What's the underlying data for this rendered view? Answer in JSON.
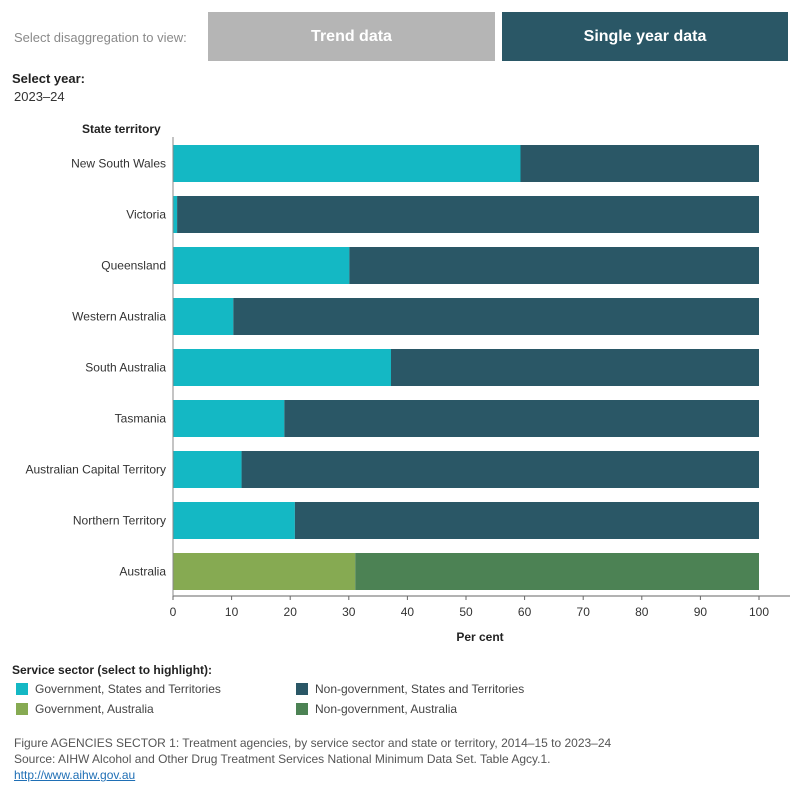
{
  "controls": {
    "disaggregation_label": "Select disaggregation to view:",
    "tabs": [
      {
        "label": "Trend data",
        "active": false
      },
      {
        "label": "Single year data",
        "active": true
      }
    ],
    "year_label": "Select year:",
    "year_value": "2023–24"
  },
  "colors": {
    "gov_states": "#14b8c4",
    "nongov_states": "#2a5766",
    "gov_australia": "#86aa52",
    "nongov_australia": "#4c8254",
    "tab_inactive": "#b5b5b5",
    "tab_active": "#2a5766"
  },
  "chart_data": {
    "type": "bar",
    "orientation": "horizontal",
    "stacked": true,
    "y_axis_title": "State territory",
    "xlabel": "Per cent",
    "xlim": [
      0,
      100
    ],
    "x_ticks": [
      0,
      10,
      20,
      30,
      40,
      50,
      60,
      70,
      80,
      90,
      100
    ],
    "categories": [
      "New South Wales",
      "Victoria",
      "Queensland",
      "Western Australia",
      "South Australia",
      "Tasmania",
      "Australian Capital Territory",
      "Northern Territory",
      "Australia"
    ],
    "series": [
      {
        "name": "Government, States and Territories",
        "values": [
          59.3,
          0.7,
          30.1,
          10.3,
          37.2,
          19.0,
          11.7,
          20.8,
          null
        ]
      },
      {
        "name": "Non-government, States and Territories",
        "values": [
          40.7,
          99.3,
          69.9,
          89.7,
          62.8,
          81.0,
          88.3,
          79.2,
          null
        ]
      },
      {
        "name": "Government, Australia",
        "values": [
          null,
          null,
          null,
          null,
          null,
          null,
          null,
          null,
          31.1
        ]
      },
      {
        "name": "Non-government, Australia",
        "values": [
          null,
          null,
          null,
          null,
          null,
          null,
          null,
          null,
          68.9
        ]
      }
    ]
  },
  "legend": {
    "title": "Service sector (select to highlight):",
    "items": [
      {
        "label": "Government,  States and Territories",
        "color": "#14b8c4"
      },
      {
        "label": "Non-government,  States and Territories",
        "color": "#2a5766"
      },
      {
        "label": "Government,  Australia",
        "color": "#86aa52"
      },
      {
        "label": "Non-government,  Australia",
        "color": "#4c8254"
      }
    ]
  },
  "footer": {
    "figure": "Figure AGENCIES SECTOR 1: Treatment agencies, by service sector and state or territory, 2014–15 to 2023–24",
    "source": "Source: AIHW Alcohol and Other Drug Treatment Services National Minimum Data Set. Table Agcy.1.",
    "link": "http://www.aihw.gov.au"
  }
}
